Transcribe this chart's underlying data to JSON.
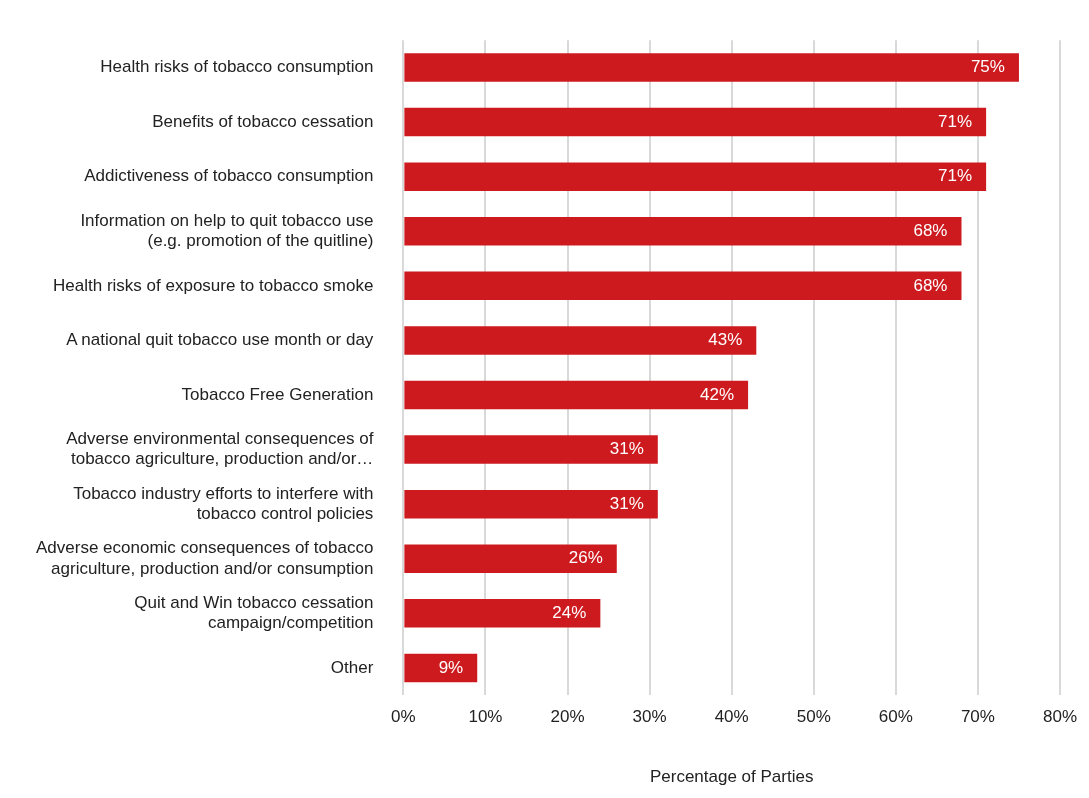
{
  "chart_data": {
    "type": "bar",
    "orientation": "horizontal",
    "xlabel": "Percentage of Parties",
    "categories": [
      "Health risks of tobacco consumption",
      "Benefits of tobacco cessation",
      "Addictiveness of tobacco consumption",
      "Information on help to quit tobacco use\n(e.g. promotion of the quitline)",
      "Health risks of exposure to tobacco smoke",
      "A national quit tobacco use month or day",
      "Tobacco Free Generation",
      "Adverse environmental consequences of\ntobacco agriculture, production and/or…",
      "Tobacco industry efforts to interfere with\ntobacco control policies",
      "Adverse economic consequences of tobacco\nagriculture, production and/or consumption",
      "Quit and Win tobacco cessation\ncampaign/competition",
      "Other"
    ],
    "values": [
      75,
      71,
      71,
      68,
      68,
      43,
      42,
      31,
      31,
      26,
      24,
      9
    ],
    "value_labels": [
      "75%",
      "71%",
      "71%",
      "68%",
      "68%",
      "43%",
      "42%",
      "31%",
      "31%",
      "26%",
      "24%",
      "9%"
    ],
    "color": "#cc1a1f",
    "xlim": [
      0,
      80
    ],
    "xticks": [
      {
        "value": 0,
        "label": "0%"
      },
      {
        "value": 10,
        "label": "10%"
      },
      {
        "value": 20,
        "label": "20%"
      },
      {
        "value": 30,
        "label": "30%"
      },
      {
        "value": 40,
        "label": "40%"
      },
      {
        "value": 50,
        "label": "50%"
      },
      {
        "value": 60,
        "label": "60%"
      },
      {
        "value": 70,
        "label": "70%"
      },
      {
        "value": 80,
        "label": "80%"
      }
    ],
    "grid": "x",
    "legend": false
  }
}
